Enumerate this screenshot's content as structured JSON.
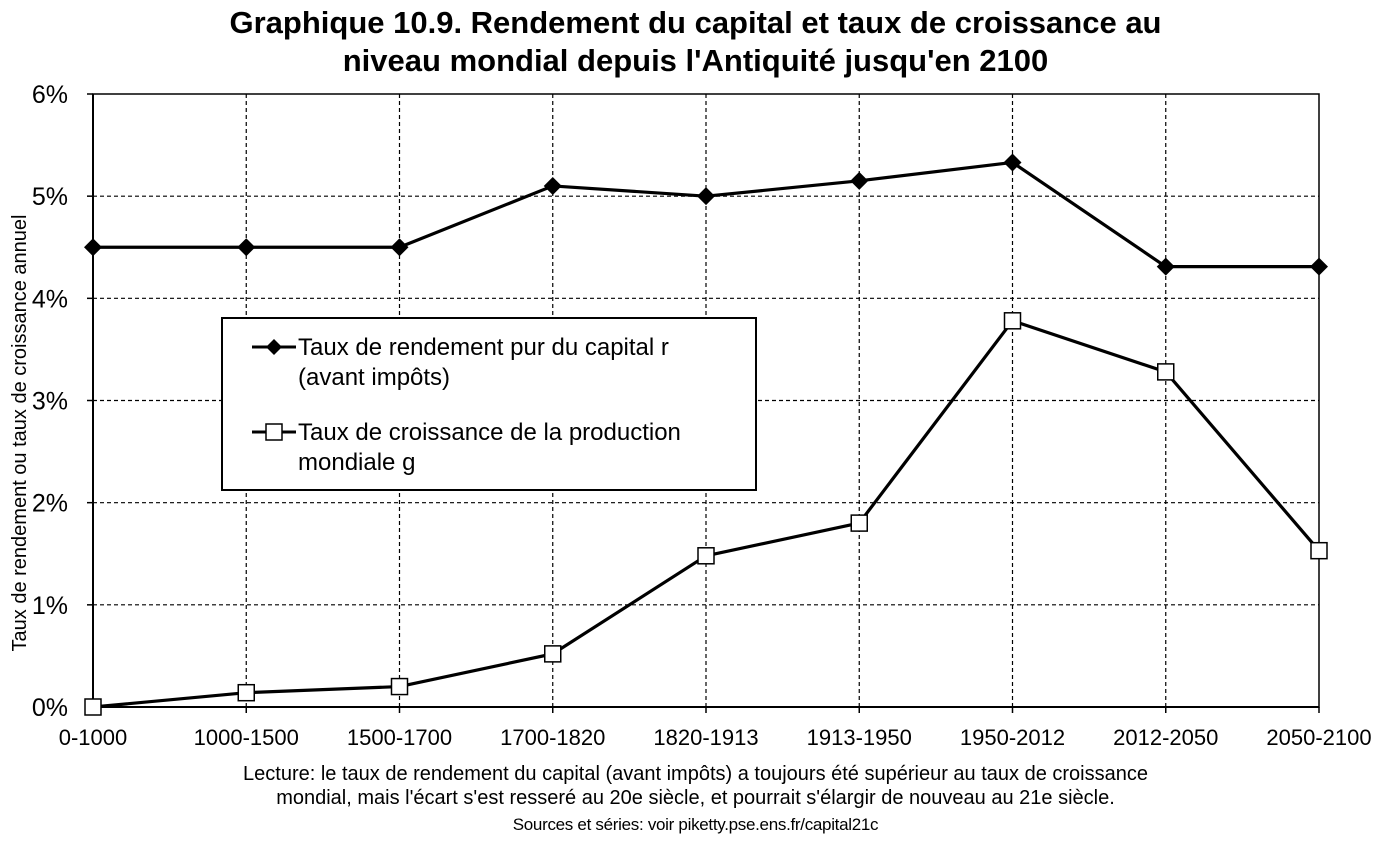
{
  "chart_data": {
    "type": "line",
    "title": [
      "Graphique 10.9. Rendement du capital et taux de croissance au",
      "niveau mondial depuis l'Antiquité jusqu'en 2100"
    ],
    "ylabel": "Taux de rendement ou taux de croissance annuel",
    "xlabel": "",
    "categories": [
      "0-1000",
      "1000-1500",
      "1500-1700",
      "1700-1820",
      "1820-1913",
      "1913-1950",
      "1950-2012",
      "2012-2050",
      "2050-2100"
    ],
    "ylim": [
      0,
      6
    ],
    "yticks": [
      0,
      1,
      2,
      3,
      4,
      5,
      6
    ],
    "ytick_labels": [
      "0%",
      "1%",
      "2%",
      "3%",
      "4%",
      "5%",
      "6%"
    ],
    "grid": "on, dashed",
    "legend_placement": "center-left",
    "series": [
      {
        "name": [
          "Taux de rendement pur du capital r",
          "(avant impôts)"
        ],
        "marker": "filled-diamond",
        "color": "#000000",
        "values": [
          4.5,
          4.5,
          4.5,
          5.1,
          5.0,
          5.15,
          5.33,
          4.31,
          4.31
        ]
      },
      {
        "name": [
          "Taux de croissance de la production",
          "mondiale g"
        ],
        "marker": "open-square",
        "color": "#000000",
        "values": [
          0.0,
          0.14,
          0.2,
          0.52,
          1.48,
          1.8,
          3.78,
          3.28,
          1.53
        ]
      }
    ]
  },
  "footer": {
    "note_line1": "Lecture: le taux de rendement du capital (avant impôts) a toujours été supérieur au taux de croissance",
    "note_line2": "mondial,  mais l'écart s'est resseré au 20e siècle, et pourrait s'élargir de nouveau au 21e siècle.",
    "source": "Sources et séries: voir piketty.pse.ens.fr/capital21c"
  }
}
